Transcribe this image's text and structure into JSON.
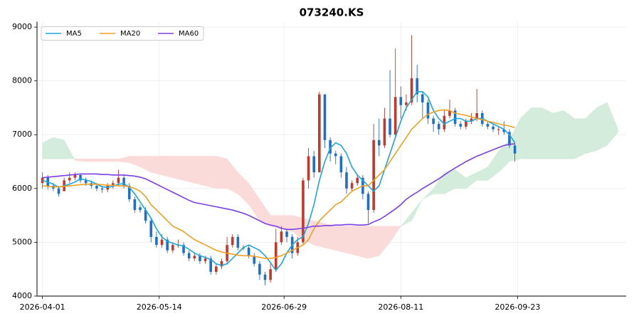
{
  "chart_data": {
    "type": "candlestick",
    "title": "073240.KS",
    "x": [
      0,
      2,
      4,
      6,
      8,
      10,
      12,
      14,
      16,
      18,
      20,
      22,
      24,
      26,
      28,
      30,
      32,
      34,
      36,
      38,
      40,
      42,
      44,
      46,
      48,
      50,
      52,
      54,
      56,
      58,
      60,
      62,
      64,
      66,
      68,
      70,
      72,
      74,
      76,
      78,
      80,
      82,
      84,
      86,
      88,
      90,
      92,
      94,
      96,
      98,
      100,
      102,
      104,
      106,
      108,
      110,
      112,
      114,
      116,
      118,
      120,
      122,
      124,
      126,
      128,
      130,
      132,
      134,
      136,
      138,
      140,
      142,
      144,
      146,
      148,
      150,
      152,
      154,
      156,
      158,
      160,
      162,
      164,
      166,
      168,
      170,
      172,
      174
    ],
    "open": [
      6100,
      6200,
      6050,
      6000,
      5950,
      6150,
      6200,
      6250,
      6150,
      6100,
      6050,
      6000,
      5980,
      6050,
      6100,
      6200,
      6050,
      5800,
      5650,
      5600,
      5400,
      5100,
      4950,
      5050,
      4850,
      4950,
      4950,
      4800,
      4700,
      4750,
      4650,
      4700,
      4450,
      4550,
      4650,
      4950,
      5100,
      4900,
      4900,
      4750,
      4600,
      4400,
      4300,
      4500,
      5000,
      5200,
      5100,
      4800,
      5000,
      6150,
      6600,
      6300,
      7750,
      6900,
      6650,
      6600,
      6300,
      6000,
      6100,
      6200,
      5900,
      5600,
      6900,
      6800,
      7300,
      7000,
      7700,
      7550,
      7600,
      8050,
      7750,
      7600,
      7300,
      7200,
      7100,
      7350,
      7450,
      7200,
      7150,
      7250,
      7300,
      7400,
      7200,
      7150,
      7100,
      7100,
      7050,
      6800
    ],
    "high": [
      6300,
      6250,
      6100,
      6050,
      6200,
      6300,
      6300,
      6280,
      6200,
      6150,
      6100,
      6050,
      6100,
      6150,
      6350,
      6250,
      6100,
      5850,
      5700,
      5650,
      5450,
      5200,
      5150,
      5100,
      5000,
      5050,
      5000,
      4850,
      4800,
      4800,
      4750,
      4750,
      4600,
      4700,
      5100,
      5150,
      5150,
      4950,
      4950,
      4800,
      4650,
      4450,
      4600,
      5250,
      5300,
      5250,
      5150,
      5100,
      6200,
      6750,
      6700,
      7800,
      7750,
      6950,
      6700,
      6650,
      6400,
      6150,
      6250,
      6250,
      5950,
      7200,
      7300,
      7500,
      8200,
      8600,
      7900,
      7750,
      8850,
      8300,
      7800,
      7650,
      7350,
      7250,
      7450,
      7650,
      7500,
      7250,
      7300,
      7400,
      7850,
      7450,
      7250,
      7200,
      7150,
      7250,
      7100,
      6850
    ],
    "low": [
      6000,
      5980,
      5950,
      5850,
      5950,
      6100,
      6150,
      6100,
      6050,
      6000,
      5950,
      5920,
      5930,
      6000,
      6050,
      6000,
      5750,
      5550,
      5550,
      5350,
      5000,
      4900,
      4900,
      4800,
      4800,
      4900,
      4750,
      4650,
      4650,
      4600,
      4600,
      4400,
      4400,
      4500,
      4600,
      4900,
      4850,
      4850,
      4700,
      4550,
      4300,
      4200,
      4250,
      4450,
      4950,
      5000,
      4700,
      4750,
      4950,
      6000,
      6200,
      6300,
      6750,
      6500,
      6450,
      6200,
      5900,
      5950,
      6050,
      5800,
      5350,
      5550,
      6600,
      6750,
      6950,
      6950,
      7300,
      7450,
      7550,
      7600,
      7300,
      7200,
      7050,
      7000,
      7050,
      7300,
      7150,
      7100,
      7100,
      7200,
      7250,
      7150,
      7100,
      7050,
      7000,
      7000,
      6750,
      6500
    ],
    "close": [
      6200,
      6050,
      6000,
      5900,
      6150,
      6200,
      6250,
      6150,
      6100,
      6050,
      6000,
      5980,
      6050,
      6100,
      6200,
      6050,
      5800,
      5600,
      5600,
      5400,
      5100,
      4950,
      5050,
      4850,
      4950,
      4950,
      4800,
      4700,
      4750,
      4650,
      4700,
      4450,
      4550,
      4650,
      4950,
      5100,
      4900,
      4900,
      4750,
      4600,
      4400,
      4300,
      4500,
      5000,
      5200,
      5100,
      4800,
      5000,
      6150,
      6600,
      6300,
      7750,
      6900,
      6650,
      6600,
      6300,
      6000,
      6100,
      6200,
      5900,
      5600,
      6900,
      6800,
      7300,
      7000,
      7700,
      7550,
      7600,
      8050,
      7750,
      7600,
      7300,
      7200,
      7100,
      7350,
      7450,
      7200,
      7150,
      7250,
      7300,
      7400,
      7200,
      7150,
      7100,
      7100,
      7050,
      6800,
      6650
    ],
    "up_color": "#c0392b",
    "down_color": "#1f6fc5",
    "series": [
      {
        "name": "MA5",
        "color": "#1aa7e0",
        "values": [
          6150,
          6120,
          6080,
          6020,
          6050,
          6080,
          6120,
          6180,
          6160,
          6130,
          6080,
          6030,
          6020,
          6040,
          6080,
          6090,
          6020,
          5900,
          5750,
          5600,
          5450,
          5250,
          5100,
          5020,
          4980,
          4950,
          4930,
          4870,
          4800,
          4750,
          4720,
          4680,
          4600,
          4570,
          4600,
          4700,
          4800,
          4900,
          4950,
          4900,
          4850,
          4750,
          4620,
          4480,
          4600,
          4800,
          4950,
          5050,
          5100,
          5350,
          5700,
          6150,
          6500,
          6750,
          6850,
          6800,
          6650,
          6400,
          6250,
          6150,
          6050,
          5950,
          6050,
          6350,
          6650,
          6950,
          7250,
          7500,
          7650,
          7800,
          7800,
          7700,
          7450,
          7300,
          7200,
          7250,
          7300,
          7300,
          7250,
          7250,
          7300,
          7300,
          7250,
          7200,
          7150,
          7100,
          7000,
          6850
        ]
      },
      {
        "name": "MA20",
        "color": "#f0a020",
        "values": [
          6050,
          6040,
          6030,
          6030,
          6040,
          6050,
          6060,
          6070,
          6080,
          6080,
          6080,
          6070,
          6060,
          6060,
          6050,
          6050,
          6030,
          6000,
          5950,
          5850,
          5700,
          5600,
          5500,
          5400,
          5300,
          5250,
          5200,
          5120,
          5050,
          5000,
          4950,
          4900,
          4850,
          4820,
          4800,
          4780,
          4760,
          4750,
          4750,
          4740,
          4720,
          4700,
          4700,
          4720,
          4750,
          4800,
          4850,
          4900,
          4950,
          5050,
          5250,
          5400,
          5500,
          5600,
          5700,
          5750,
          5850,
          5950,
          6000,
          6050,
          6050,
          6150,
          6250,
          6350,
          6500,
          6650,
          6800,
          6950,
          7100,
          7200,
          7300,
          7380,
          7420,
          7450,
          7460,
          7450,
          7400,
          7380,
          7360,
          7330,
          7300,
          7280,
          7250,
          7230,
          7200,
          7180,
          7160,
          7130
        ]
      },
      {
        "name": "MA60",
        "color": "#7b3fe4",
        "values": [
          6200,
          6210,
          6220,
          6230,
          6240,
          6250,
          6260,
          6270,
          6270,
          6270,
          6270,
          6260,
          6260,
          6250,
          6250,
          6250,
          6240,
          6230,
          6210,
          6180,
          6130,
          6080,
          6030,
          5980,
          5930,
          5880,
          5830,
          5780,
          5740,
          5720,
          5700,
          5680,
          5660,
          5640,
          5620,
          5600,
          5570,
          5540,
          5500,
          5450,
          5400,
          5350,
          5320,
          5300,
          5260,
          5240,
          5240,
          5250,
          5260,
          5280,
          5300,
          5300,
          5310,
          5310,
          5320,
          5320,
          5330,
          5330,
          5320,
          5320,
          5330,
          5380,
          5420,
          5480,
          5550,
          5620,
          5700,
          5800,
          5870,
          5930,
          6000,
          6060,
          6120,
          6180,
          6250,
          6320,
          6380,
          6440,
          6500,
          6550,
          6600,
          6640,
          6680,
          6720,
          6760,
          6800,
          6820,
          6830
        ]
      }
    ],
    "cloud": {
      "x": [
        0,
        4,
        8,
        12,
        16,
        20,
        24,
        28,
        32,
        36,
        40,
        44,
        48,
        52,
        56,
        60,
        64,
        68,
        72,
        76,
        80,
        84,
        88,
        92,
        96,
        100,
        104,
        108,
        112,
        116,
        120,
        124,
        128,
        132,
        136,
        140,
        144,
        148,
        152,
        156,
        160,
        164,
        168,
        172,
        176,
        180,
        184,
        188,
        192,
        196,
        200,
        204,
        208,
        212
      ],
      "span_a": [
        6850,
        6950,
        6900,
        6520,
        6500,
        6500,
        6500,
        6500,
        6480,
        6400,
        6300,
        6250,
        6200,
        6150,
        6100,
        6050,
        6000,
        6000,
        5900,
        5700,
        5400,
        5300,
        5250,
        5200,
        5050,
        4950,
        4900,
        4850,
        4800,
        4750,
        4700,
        4750,
        5000,
        5300,
        5550,
        5800,
        6000,
        6300,
        6350,
        6200,
        6300,
        6400,
        6700,
        6900,
        7300,
        7500,
        7500,
        7400,
        7450,
        7300,
        7300,
        7500,
        7600,
        7100
      ],
      "span_b": [
        6550,
        6550,
        6550,
        6550,
        6550,
        6550,
        6550,
        6550,
        6600,
        6600,
        6600,
        6600,
        6600,
        6600,
        6600,
        6600,
        6600,
        6550,
        6300,
        6100,
        5800,
        5500,
        5500,
        5500,
        5450,
        5400,
        5350,
        5300,
        5300,
        5300,
        5300,
        5300,
        5300,
        5300,
        5400,
        5800,
        5900,
        5900,
        6000,
        6000,
        6150,
        6150,
        6300,
        6500,
        6550,
        6550,
        6550,
        6550,
        6550,
        6550,
        6650,
        6700,
        6800,
        7050
      ],
      "up_color": "#d4ecdc",
      "down_color": "#fbdada"
    },
    "xlim": [
      -2,
      215
    ],
    "ylim": [
      4000,
      9100
    ],
    "xticks": [
      {
        "value": 0,
        "label": "2026-04-01"
      },
      {
        "value": 43,
        "label": "2026-05-14"
      },
      {
        "value": 89,
        "label": "2026-06-29"
      },
      {
        "value": 132,
        "label": "2026-08-11"
      },
      {
        "value": 175,
        "label": "2026-09-23"
      }
    ],
    "yticks": [
      4000,
      5000,
      6000,
      7000,
      8000,
      9000
    ],
    "grid": true,
    "legend": "upper left"
  }
}
